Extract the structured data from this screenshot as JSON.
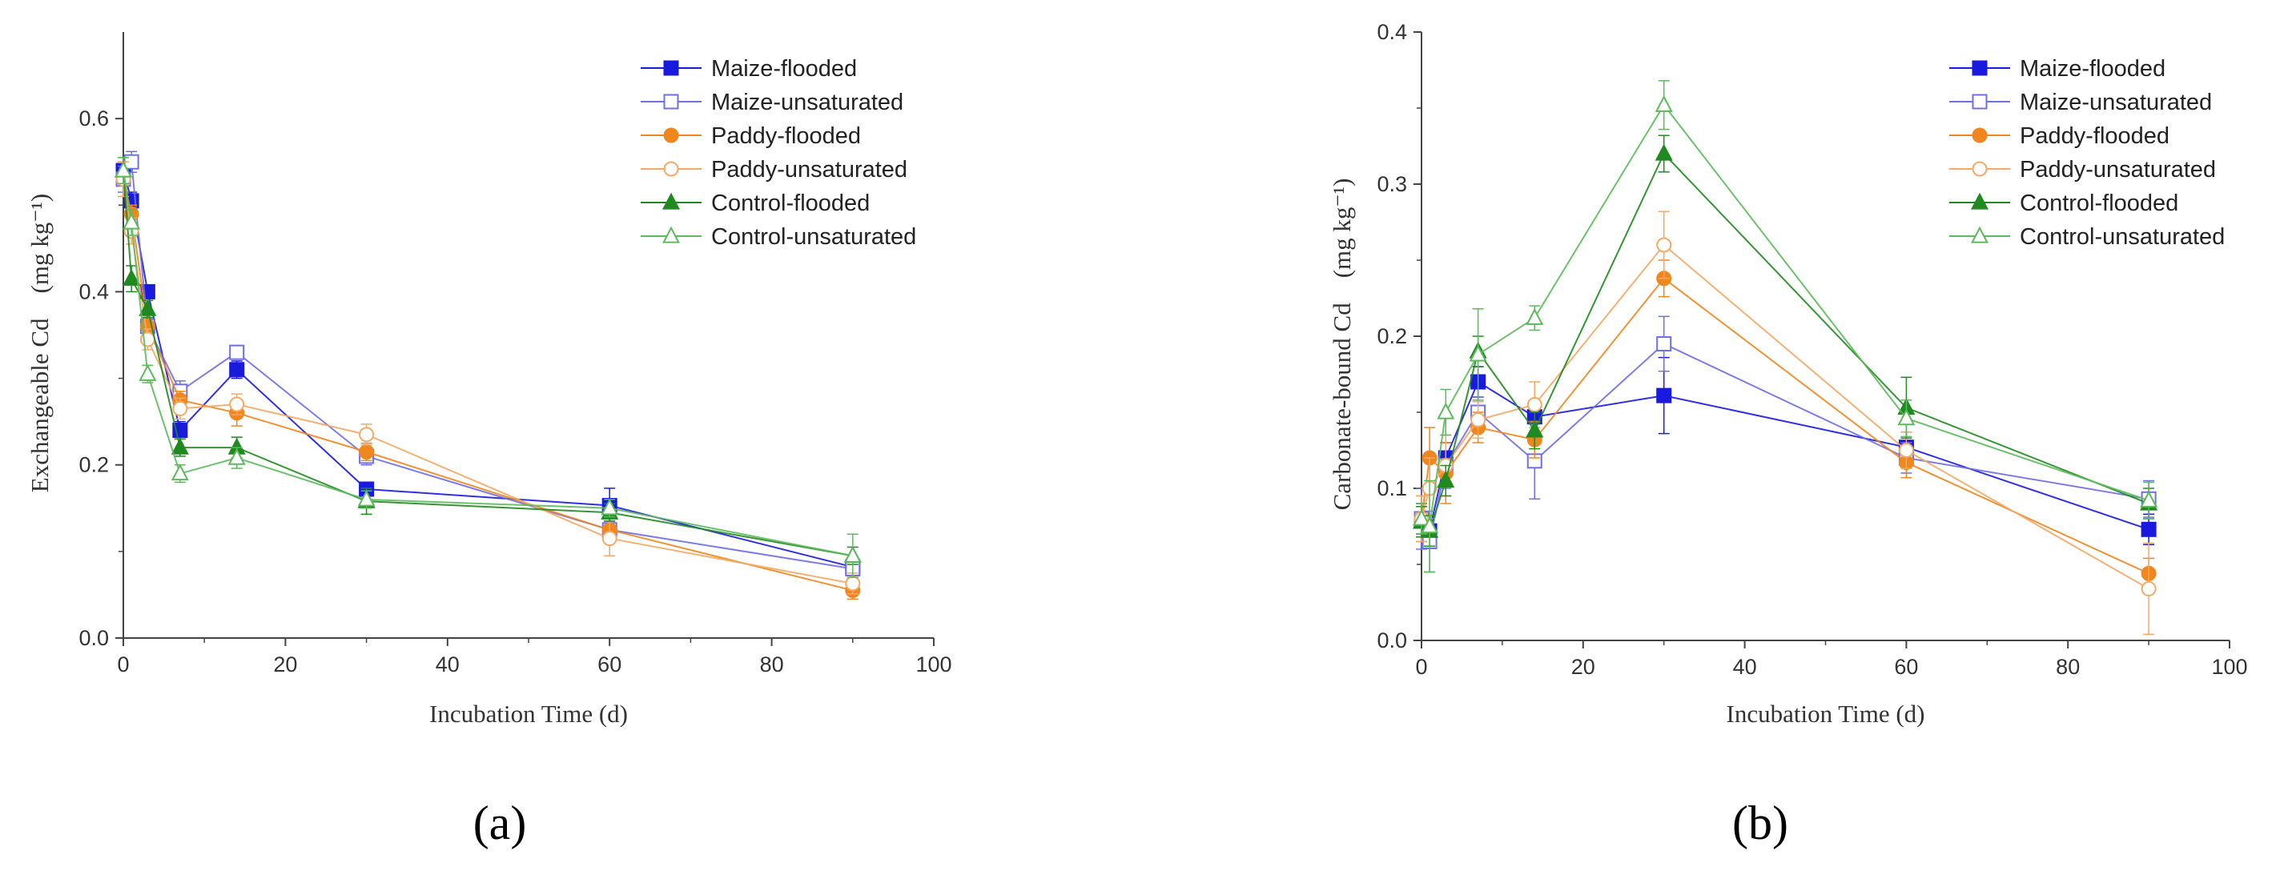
{
  "chart_data": [
    {
      "type": "line",
      "panel_label": "(a)",
      "xlabel": "Incubation Time (d)",
      "ylabel": "Exchangeable Cd　(mg kg⁻¹)",
      "xlim": [
        0,
        100
      ],
      "ylim": [
        0,
        0.7
      ],
      "xticks": [
        "0",
        "20",
        "40",
        "60",
        "80",
        "100"
      ],
      "yticks": [
        "0.0",
        "0.2",
        "0.4",
        "0.6"
      ],
      "legend_position": "top-right",
      "x": [
        0,
        1,
        3,
        7,
        14,
        30,
        60,
        90
      ],
      "series": [
        {
          "name": "Maize-flooded",
          "values": [
            0.54,
            0.505,
            0.4,
            0.24,
            0.31,
            0.172,
            0.153,
            0.082
          ],
          "errors": [
            0.01,
            0.01,
            0.005,
            0.01,
            0.01,
            0.008,
            0.02,
            0.01
          ]
        },
        {
          "name": "Maize-unsaturated",
          "values": [
            0.53,
            0.55,
            0.36,
            0.285,
            0.33,
            0.21,
            0.125,
            0.08
          ],
          "errors": [
            0.015,
            0.012,
            0.01,
            0.012,
            0.008,
            0.01,
            0.01,
            0.01
          ]
        },
        {
          "name": "Paddy-flooded",
          "values": [
            0.53,
            0.49,
            0.36,
            0.275,
            0.26,
            0.215,
            0.125,
            0.055
          ],
          "errors": [
            0.02,
            0.01,
            0.01,
            0.01,
            0.015,
            0.01,
            0.015,
            0.01
          ]
        },
        {
          "name": "Paddy-unsaturated",
          "values": [
            0.53,
            0.47,
            0.345,
            0.265,
            0.27,
            0.235,
            0.115,
            0.063
          ],
          "errors": [
            0.02,
            0.015,
            0.012,
            0.012,
            0.012,
            0.012,
            0.02,
            0.012
          ]
        },
        {
          "name": "Control-flooded",
          "values": [
            0.54,
            0.415,
            0.38,
            0.22,
            0.22,
            0.158,
            0.145,
            0.095
          ],
          "errors": [
            0.015,
            0.015,
            0.01,
            0.01,
            0.012,
            0.015,
            0.01,
            0.01
          ]
        },
        {
          "name": "Control-unsaturated",
          "values": [
            0.54,
            0.48,
            0.305,
            0.19,
            0.208,
            0.16,
            0.15,
            0.095
          ],
          "errors": [
            0.015,
            0.015,
            0.01,
            0.01,
            0.012,
            0.01,
            0.01,
            0.025
          ]
        }
      ]
    },
    {
      "type": "line",
      "panel_label": "(b)",
      "xlabel": "Incubation Time (d)",
      "ylabel": "Carbonate-bound Cd　(mg kg⁻¹)",
      "xlim": [
        0,
        100
      ],
      "ylim": [
        0,
        0.4
      ],
      "xticks": [
        "0",
        "20",
        "40",
        "60",
        "80",
        "100"
      ],
      "yticks": [
        "0.0",
        "0.1",
        "0.2",
        "0.3",
        "0.4"
      ],
      "legend_position": "top-right",
      "x": [
        0,
        1,
        3,
        7,
        14,
        30,
        60,
        90
      ],
      "series": [
        {
          "name": "Maize-flooded",
          "values": [
            0.08,
            0.072,
            0.12,
            0.17,
            0.147,
            0.161,
            0.127,
            0.073
          ],
          "errors": [
            0.01,
            0.01,
            0.01,
            0.01,
            0.01,
            0.025,
            0.01,
            0.01
          ]
        },
        {
          "name": "Maize-unsaturated",
          "values": [
            0.08,
            0.065,
            0.115,
            0.15,
            0.118,
            0.195,
            0.12,
            0.093
          ],
          "errors": [
            0.02,
            0.02,
            0.015,
            0.01,
            0.025,
            0.018,
            0.01,
            0.012
          ]
        },
        {
          "name": "Paddy-flooded",
          "values": [
            0.08,
            0.12,
            0.11,
            0.14,
            0.132,
            0.238,
            0.117,
            0.044
          ],
          "errors": [
            0.015,
            0.02,
            0.02,
            0.01,
            0.012,
            0.012,
            0.01,
            0.01
          ]
        },
        {
          "name": "Paddy-unsaturated",
          "values": [
            0.08,
            0.1,
            0.115,
            0.145,
            0.155,
            0.26,
            0.125,
            0.034
          ],
          "errors": [
            0.015,
            0.02,
            0.02,
            0.012,
            0.015,
            0.022,
            0.012,
            0.03
          ]
        },
        {
          "name": "Control-flooded",
          "values": [
            0.078,
            0.072,
            0.105,
            0.19,
            0.138,
            0.32,
            0.153,
            0.09
          ],
          "errors": [
            0.01,
            0.01,
            0.01,
            0.01,
            0.012,
            0.012,
            0.02,
            0.01
          ]
        },
        {
          "name": "Control-unsaturated",
          "values": [
            0.08,
            0.075,
            0.15,
            0.188,
            0.212,
            0.352,
            0.146,
            0.092
          ],
          "errors": [
            0.01,
            0.03,
            0.015,
            0.03,
            0.008,
            0.016,
            0.012,
            0.012
          ]
        }
      ]
    }
  ],
  "series_styles": [
    {
      "name": "Maize-flooded",
      "color": "#1a1adf",
      "marker": "square",
      "filled": true
    },
    {
      "name": "Maize-unsaturated",
      "color": "#6f6fe6",
      "marker": "square",
      "filled": false
    },
    {
      "name": "Paddy-flooded",
      "color": "#f0861e",
      "marker": "circle",
      "filled": true
    },
    {
      "name": "Paddy-unsaturated",
      "color": "#f4a965",
      "marker": "circle",
      "filled": false
    },
    {
      "name": "Control-flooded",
      "color": "#1f8a1f",
      "marker": "triangle",
      "filled": true
    },
    {
      "name": "Control-unsaturated",
      "color": "#5cba5c",
      "marker": "triangle",
      "filled": false
    }
  ]
}
